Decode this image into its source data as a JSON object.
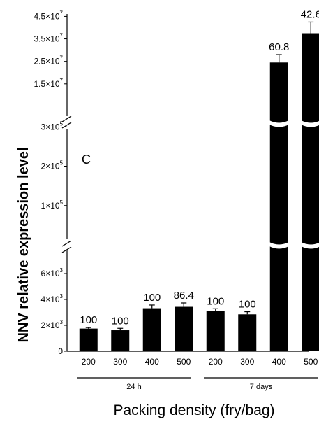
{
  "chart_data": {
    "type": "bar",
    "panel_label": "C",
    "xlabel": "Packing density (fry/bag)",
    "ylabel": "NNV relative expression level",
    "categories": [
      "200",
      "300",
      "400",
      "500",
      "200",
      "300",
      "400",
      "500"
    ],
    "groups": [
      {
        "label": "24 h",
        "indices": [
          0,
          1,
          2,
          3
        ]
      },
      {
        "label": "7 days",
        "indices": [
          4,
          5,
          6,
          7
        ]
      }
    ],
    "series": [
      {
        "values": [
          1750,
          1620,
          3320,
          3430,
          3100,
          2850,
          24500000,
          37500000
        ],
        "errors": [
          80,
          150,
          250,
          300,
          180,
          200,
          3500000,
          5000000
        ],
        "data_labels": [
          "100",
          "100",
          "100",
          "86.4",
          "100",
          "100",
          "60.8",
          "42.6"
        ]
      }
    ],
    "y_axis_segments": [
      {
        "range": [
          0,
          8000
        ],
        "ticks": [
          {
            "value": 0,
            "label": "0"
          },
          {
            "value": 2000,
            "base": "2×10",
            "exp": "3"
          },
          {
            "value": 4000,
            "base": "4×10",
            "exp": "3"
          },
          {
            "value": 6000,
            "base": "6×10",
            "exp": "3"
          }
        ]
      },
      {
        "range": [
          0,
          320000
        ],
        "ticks": [
          {
            "value": 100000,
            "base": "1×10",
            "exp": "5"
          },
          {
            "value": 200000,
            "base": "2×10",
            "exp": "5"
          },
          {
            "value": 300000,
            "base": "3×10",
            "exp": "5"
          }
        ]
      },
      {
        "range": [
          0,
          47000000
        ],
        "ticks": [
          {
            "value": 15000000,
            "base": "1.5×10",
            "exp": "7"
          },
          {
            "value": 25000000,
            "base": "2.5×10",
            "exp": "7"
          },
          {
            "value": 35000000,
            "base": "3.5×10",
            "exp": "7"
          },
          {
            "value": 45000000,
            "base": "4.5×10",
            "exp": "7"
          }
        ]
      }
    ],
    "bar_color": "#000000",
    "grid": false,
    "legend": "none"
  }
}
